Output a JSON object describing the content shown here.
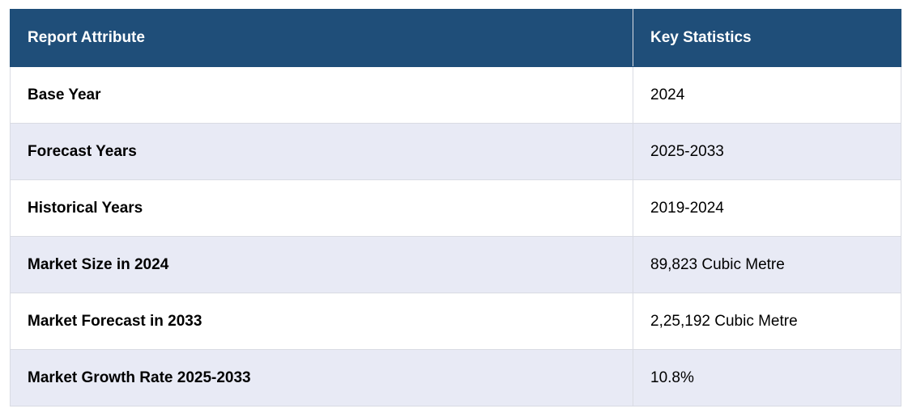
{
  "table": {
    "headers": [
      "Report Attribute",
      "Key Statistics"
    ],
    "rows": [
      {
        "attribute": "Base Year",
        "value": "2024"
      },
      {
        "attribute": "Forecast Years",
        "value": "2025-2033"
      },
      {
        "attribute": "Historical Years",
        "value": "2019-2024"
      },
      {
        "attribute": "Market Size in 2024",
        "value": "89,823 Cubic Metre"
      },
      {
        "attribute": "Market Forecast in 2033",
        "value": "2,25,192 Cubic Metre"
      },
      {
        "attribute": "Market Growth Rate 2025-2033",
        "value": "10.8%"
      }
    ]
  },
  "colors": {
    "header_bg": "#1f4e79",
    "header_text": "#ffffff",
    "row_alt_bg": "#e8eaf5",
    "border": "#d9dbe3"
  }
}
